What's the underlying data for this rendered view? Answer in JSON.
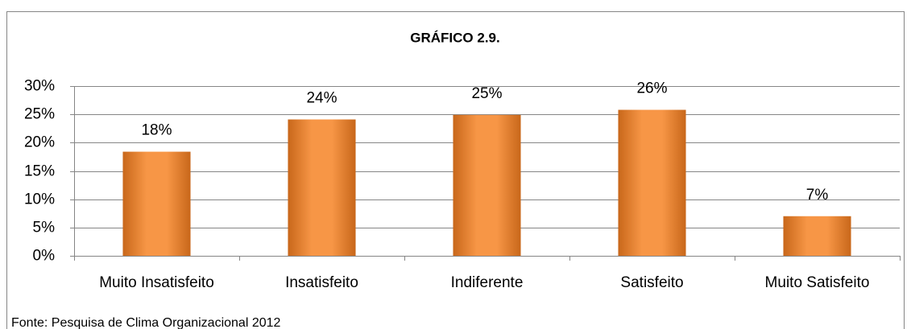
{
  "chart_data": {
    "type": "bar",
    "title": "GRÁFICO 2.9.",
    "categories": [
      "Muito Insatisfeito",
      "Insatisfeito",
      "Indiferente",
      "Satisfeito",
      "Muito Satisfeito"
    ],
    "values": [
      18.4,
      24.1,
      24.9,
      25.8,
      7
    ],
    "value_labels": [
      "18%",
      "24%",
      "25%",
      "26%",
      "7%"
    ],
    "color": "#f79646",
    "ylim": [
      0,
      30
    ],
    "yticks": [
      {
        "value": 0,
        "label": "0%"
      },
      {
        "value": 5,
        "label": "5%"
      },
      {
        "value": 10,
        "label": "10%"
      },
      {
        "value": 15,
        "label": "15%"
      },
      {
        "value": 20,
        "label": "20%"
      },
      {
        "value": 25,
        "label": "25%"
      },
      {
        "value": 30,
        "label": "30%"
      }
    ],
    "grid": true,
    "source": "Fonte: Pesquisa de Clima Organizacional 2012"
  }
}
